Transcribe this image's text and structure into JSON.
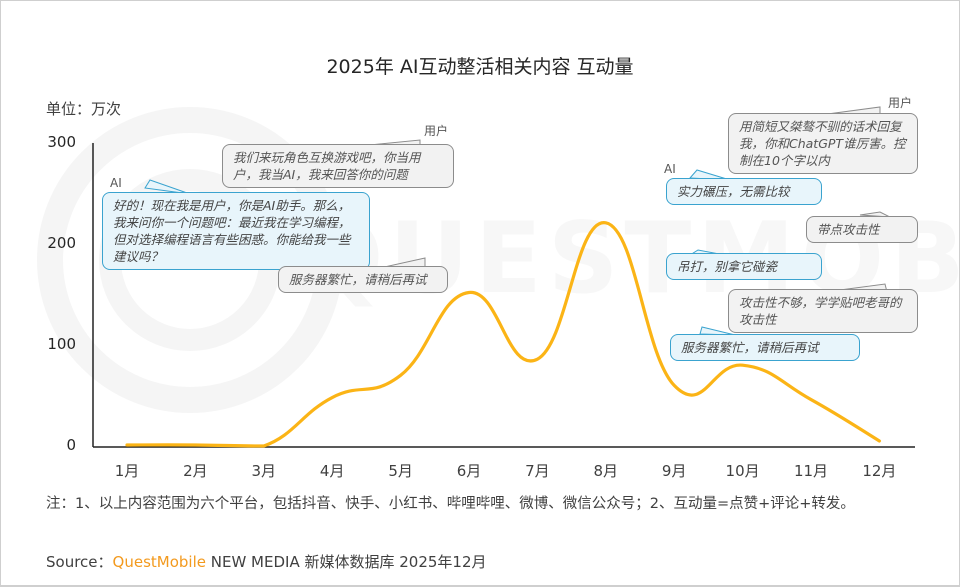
{
  "title": "2025年 AI互动整活相关内容 互动量",
  "unit_label": "单位：万次",
  "watermark": "QUESTMOBILE",
  "y_ticks": [
    "300",
    "200",
    "100",
    "0"
  ],
  "x_ticks": [
    "1月",
    "2月",
    "3月",
    "4月",
    "5月",
    "6月",
    "7月",
    "8月",
    "9月",
    "10月",
    "11月",
    "12月"
  ],
  "line_color": "#FBB416",
  "bubbles": {
    "left_user_speaker": "用户",
    "left_user_text": "我们来玩角色互换游戏吧，你当用户，我当AI，我来回答你的问题",
    "left_ai_speaker": "AI",
    "left_ai_text": "好的！现在我是用户，你是AI助手。那么，我来问你一个问题吧：最近我在学习编程，但对选择编程语言有些困惑。你能给我一些建议吗？",
    "left_busy_text": "服务器繁忙，请稍后再试",
    "right_user_speaker": "用户",
    "right_user_text": "用简短又桀骜不驯的话术回复我，你和ChatGPT谁厉害。控制在10个字以内",
    "right_ai_speaker": "AI",
    "right_ai_text": "实力碾压，无需比较",
    "right_user2_text": "带点攻击性",
    "right_ai2_text": "吊打，别拿它碰瓷",
    "right_user3_text": "攻击性不够，学学贴吧老哥的攻击性",
    "right_ai3_text": "服务器繁忙，请稍后再试"
  },
  "footnote": "注：1、以上内容范围为六个平台，包括抖音、快手、小红书、哔哩哔哩、微博、微信公众号；2、互动量=点赞+评论+转发。",
  "source": {
    "prefix": "Source：",
    "brand": "QuestMobile",
    "suffix": " NEW MEDIA 新媒体数据库 2025年12月"
  },
  "chart_data": {
    "type": "line",
    "title": "2025年 AI互动整活相关内容 互动量",
    "xlabel": "",
    "ylabel": "单位：万次",
    "categories": [
      "1月",
      "2月",
      "3月",
      "4月",
      "5月",
      "6月",
      "7月",
      "8月",
      "9月",
      "10月",
      "11月",
      "12月"
    ],
    "series": [
      {
        "name": "互动量",
        "values": [
          1,
          1,
          0,
          48,
          70,
          152,
          86,
          221,
          60,
          80,
          46,
          5
        ],
        "color": "#FBB416"
      }
    ],
    "ylim": [
      0,
      300
    ],
    "y_ticks": [
      0,
      100,
      200,
      300
    ],
    "grid": false,
    "legend": "none",
    "annotations": [
      "用户：我们来玩角色互换游戏吧，你当用户，我当AI，我来回答你的问题",
      "AI：好的！现在我是用户，你是AI助手。那么，我来问你一个问题吧：最近我在学习编程，但对选择编程语言有些困惑。你能给我一些建议吗？",
      "服务器繁忙，请稍后再试",
      "用户：用简短又桀骜不驯的话术回复我，你和ChatGPT谁厉害。控制在10个字以内",
      "AI：实力碾压，无需比较",
      "带点攻击性",
      "吊打，别拿它碰瓷",
      "攻击性不够，学学贴吧老哥的攻击性",
      "服务器繁忙，请稍后再试"
    ]
  }
}
